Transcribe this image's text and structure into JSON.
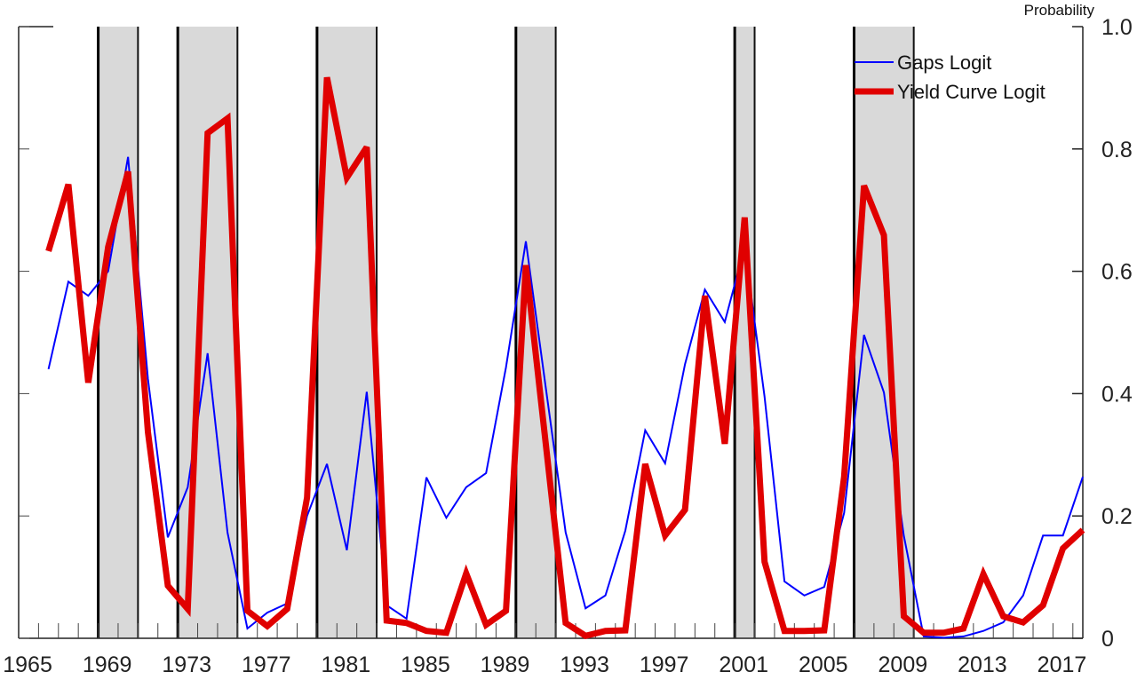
{
  "chart_data": {
    "type": "line",
    "title": "",
    "xlabel": "",
    "ylabel": "Probability",
    "xlim": [
      1965,
      2018.5
    ],
    "ylim": [
      0,
      1.0
    ],
    "x_tick_labels": [
      "1965",
      "1969",
      "1973",
      "1977",
      "1981",
      "1985",
      "1989",
      "1993",
      "1997",
      "2001",
      "2005",
      "2009",
      "2013",
      "2017"
    ],
    "y_tick_labels": [
      "0",
      "0.2",
      "0.4",
      "0.6",
      "0.8",
      "1.0"
    ],
    "y_ticks": [
      0,
      0.2,
      0.4,
      0.6,
      0.8,
      1.0
    ],
    "grid": false,
    "legend_position": "top-right",
    "shaded_periods": [
      [
        1969,
        1970
      ],
      [
        1973,
        1975
      ],
      [
        1980,
        1982
      ],
      [
        1990,
        1991
      ],
      [
        2001,
        2001
      ],
      [
        2007,
        2009
      ]
    ],
    "x": [
      1966,
      1967,
      1968,
      1969,
      1970,
      1971,
      1972,
      1973,
      1974,
      1975,
      1976,
      1977,
      1978,
      1979,
      1980,
      1981,
      1982,
      1983,
      1984,
      1985,
      1986,
      1987,
      1988,
      1989,
      1990,
      1991,
      1992,
      1993,
      1994,
      1995,
      1996,
      1997,
      1998,
      1999,
      2000,
      2001,
      2002,
      2003,
      2004,
      2005,
      2006,
      2007,
      2008,
      2009,
      2010,
      2011,
      2012,
      2013,
      2014,
      2015,
      2016,
      2017,
      2018
    ],
    "series": [
      {
        "name": "Gaps Logit",
        "color": "#0000ff",
        "values": [
          0.44,
          0.583,
          0.56,
          0.6,
          0.787,
          0.424,
          0.165,
          0.247,
          0.466,
          0.173,
          0.016,
          0.042,
          0.057,
          0.2,
          0.285,
          0.144,
          0.403,
          0.054,
          0.032,
          0.263,
          0.197,
          0.247,
          0.27,
          0.443,
          0.649,
          0.41,
          0.173,
          0.049,
          0.07,
          0.176,
          0.34,
          0.286,
          0.448,
          0.57,
          0.517,
          0.64,
          0.395,
          0.093,
          0.07,
          0.084,
          0.205,
          0.496,
          0.402,
          0.168,
          0.003,
          0.001,
          0.003,
          0.012,
          0.026,
          0.07,
          0.168,
          0.168,
          0.264
        ]
      },
      {
        "name": "Yield Curve Logit",
        "color": "#e00000",
        "values": [
          0.633,
          0.742,
          0.418,
          0.64,
          0.763,
          0.337,
          0.086,
          0.048,
          0.826,
          0.85,
          0.045,
          0.02,
          0.048,
          0.23,
          0.917,
          0.753,
          0.803,
          0.029,
          0.025,
          0.012,
          0.009,
          0.106,
          0.022,
          0.045,
          0.61,
          0.318,
          0.025,
          0.004,
          0.012,
          0.013,
          0.285,
          0.168,
          0.21,
          0.56,
          0.318,
          0.688,
          0.125,
          0.012,
          0.012,
          0.013,
          0.264,
          0.74,
          0.659,
          0.036,
          0.009,
          0.009,
          0.016,
          0.105,
          0.036,
          0.026,
          0.054,
          0.147,
          0.177
        ]
      }
    ]
  }
}
